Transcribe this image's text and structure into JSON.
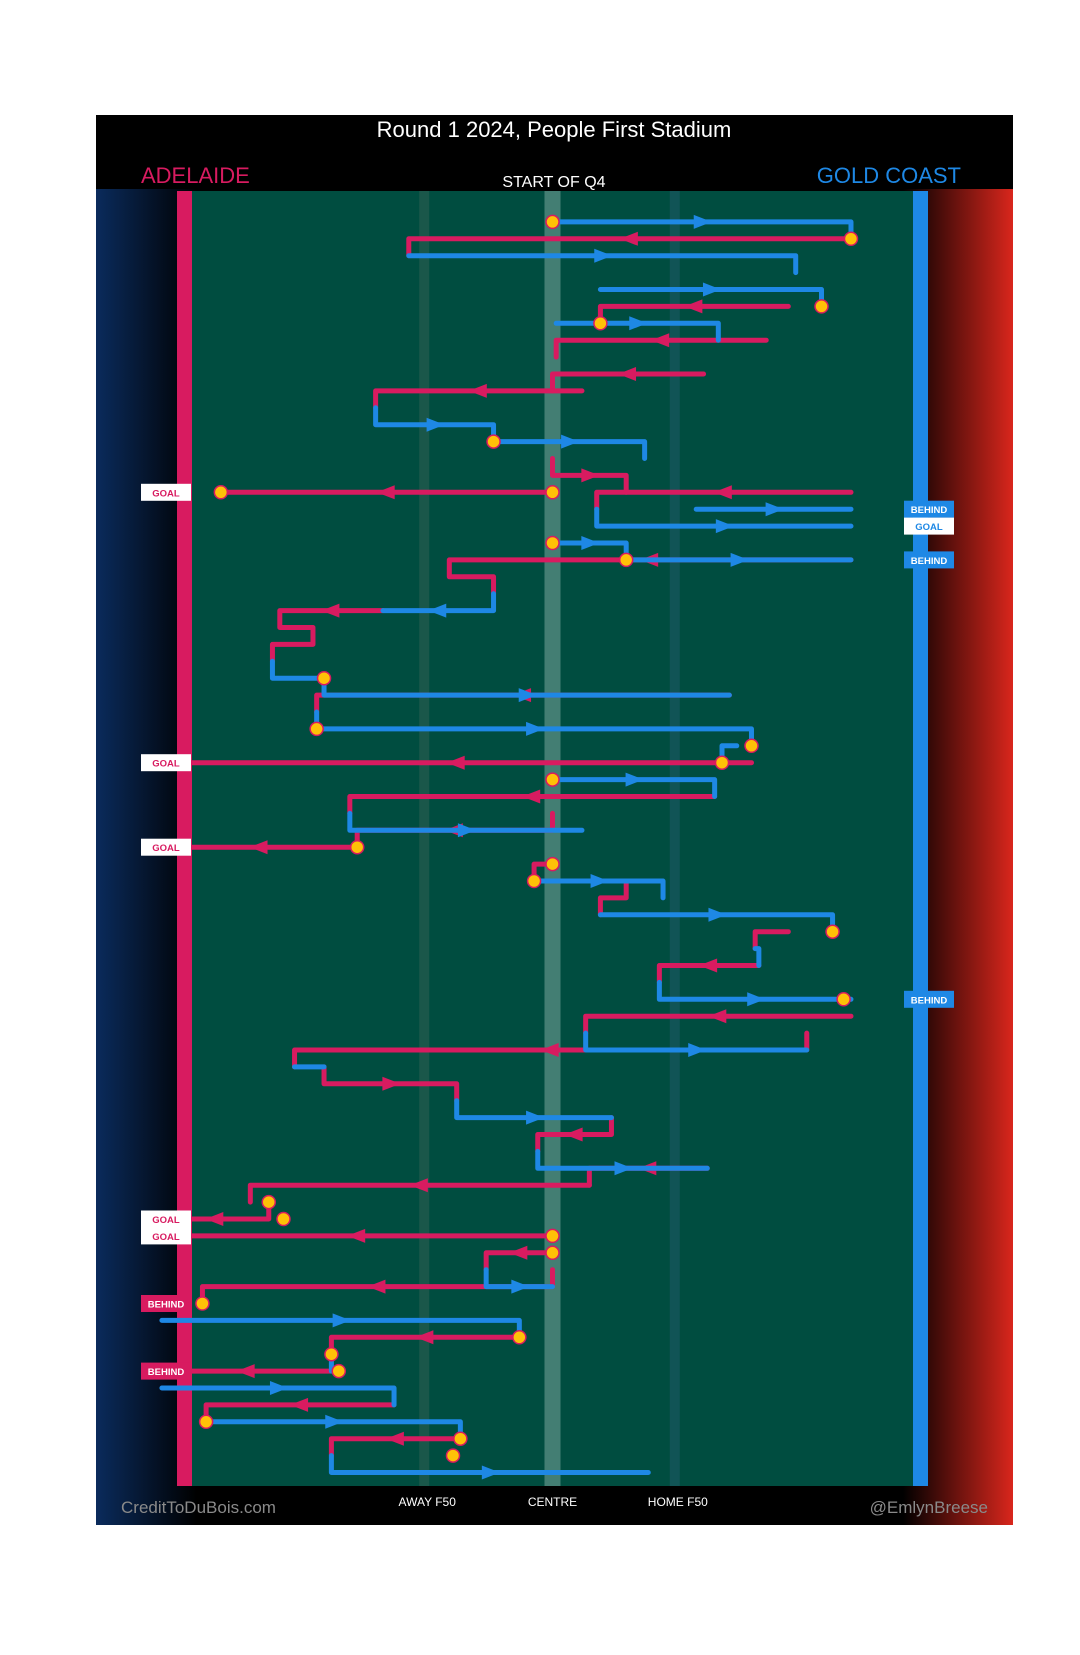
{
  "header": {
    "title": "Round 1 2024, People First Stadium",
    "home_team": "ADELAIDE",
    "away_team": "GOLD COAST",
    "quarter_label": "START OF Q4"
  },
  "footer": {
    "credit_left": "CreditToDuBois.com",
    "credit_right": "@EmlynBreese"
  },
  "colors": {
    "adelaide": "#d81b60",
    "gold_coast": "#1e88e5",
    "field": "#004d40",
    "marker": "#ffc107",
    "frame": "#000000"
  },
  "chart_data": {
    "type": "line",
    "x_axis": {
      "ticks": [
        {
          "label": "AWAY F50",
          "value": 0.33
        },
        {
          "label": "CENTRE",
          "value": 0.5
        },
        {
          "label": "HOME F50",
          "value": 0.67
        }
      ],
      "range": [
        0,
        1
      ]
    },
    "y_axis": {
      "range": [
        0,
        76
      ],
      "direction": "down"
    },
    "series": [
      {
        "name": "ADELAIDE",
        "color": "#d81b60",
        "segments": [
          [
            [
              0.905,
              2
            ],
            [
              0.305,
              2
            ],
            [
              0.305,
              3
            ]
          ],
          [
            [
              0.82,
              6
            ],
            [
              0.565,
              6
            ],
            [
              0.565,
              7
            ]
          ],
          [
            [
              0.79,
              8
            ],
            [
              0.505,
              8
            ],
            [
              0.505,
              9
            ]
          ],
          [
            [
              0.705,
              10
            ],
            [
              0.5,
              10
            ],
            [
              0.5,
              11
            ]
          ],
          [
            [
              0.54,
              11
            ],
            [
              0.26,
              11
            ],
            [
              0.26,
              12
            ]
          ],
          [
            [
              0.5,
              15
            ],
            [
              0.5,
              16
            ],
            [
              0.6,
              16
            ],
            [
              0.6,
              17
            ]
          ],
          [
            [
              0.905,
              17
            ],
            [
              0.56,
              17
            ],
            [
              0.56,
              18
            ]
          ],
          [
            [
              0.5,
              17
            ],
            [
              0.05,
              17
            ]
          ],
          [
            [
              0.905,
              21
            ],
            [
              0.36,
              21
            ],
            [
              0.36,
              22
            ],
            [
              0.42,
              22
            ],
            [
              0.42,
              23
            ]
          ],
          [
            [
              0.27,
              24
            ],
            [
              0.13,
              24
            ],
            [
              0.13,
              25
            ],
            [
              0.175,
              25
            ],
            [
              0.175,
              26
            ],
            [
              0.12,
              26
            ],
            [
              0.12,
              27
            ]
          ],
          [
            [
              0.74,
              29
            ],
            [
              0.18,
              29
            ],
            [
              0.18,
              30
            ]
          ],
          [
            [
              0.77,
              33
            ],
            [
              -0.03,
              33
            ]
          ],
          [
            [
              0.72,
              35
            ],
            [
              0.225,
              35
            ],
            [
              0.225,
              36
            ]
          ],
          [
            [
              0.5,
              36
            ],
            [
              0.5,
              37
            ],
            [
              0.235,
              37
            ],
            [
              0.235,
              38
            ]
          ],
          [
            [
              0.235,
              38
            ],
            [
              -0.03,
              38
            ]
          ],
          [
            [
              0.5,
              39
            ],
            [
              0.475,
              39
            ],
            [
              0.475,
              40
            ]
          ],
          [
            [
              0.6,
              40
            ],
            [
              0.6,
              41
            ],
            [
              0.565,
              41
            ],
            [
              0.565,
              42
            ]
          ],
          [
            [
              0.82,
              43
            ],
            [
              0.775,
              43
            ],
            [
              0.775,
              44
            ]
          ],
          [
            [
              0.78,
              45
            ],
            [
              0.645,
              45
            ],
            [
              0.645,
              46
            ]
          ],
          [
            [
              0.905,
              48
            ],
            [
              0.545,
              48
            ],
            [
              0.545,
              49
            ]
          ],
          [
            [
              0.845,
              49
            ],
            [
              0.845,
              50
            ],
            [
              0.15,
              50
            ],
            [
              0.15,
              51
            ]
          ],
          [
            [
              0.19,
              51
            ],
            [
              0.19,
              52
            ],
            [
              0.37,
              52
            ],
            [
              0.37,
              53
            ]
          ],
          [
            [
              0.58,
              54
            ],
            [
              0.58,
              55
            ],
            [
              0.48,
              55
            ],
            [
              0.48,
              56
            ]
          ],
          [
            [
              0.71,
              57
            ],
            [
              0.55,
              57
            ],
            [
              0.55,
              58
            ]
          ],
          [
            [
              0.55,
              58
            ],
            [
              0.09,
              58
            ],
            [
              0.09,
              59
            ]
          ],
          [
            [
              0.115,
              59
            ],
            [
              0.115,
              60
            ],
            [
              -0.03,
              60
            ]
          ],
          [
            [
              0.5,
              61
            ],
            [
              -0.03,
              61
            ]
          ],
          [
            [
              0.5,
              62
            ],
            [
              0.41,
              62
            ],
            [
              0.41,
              63
            ]
          ],
          [
            [
              0.5,
              63
            ],
            [
              0.5,
              64
            ],
            [
              0.025,
              64
            ],
            [
              0.025,
              65
            ]
          ],
          [
            [
              0.455,
              67
            ],
            [
              0.2,
              67
            ],
            [
              0.2,
              68
            ]
          ],
          [
            [
              0.2,
              69
            ],
            [
              -0.03,
              69
            ]
          ],
          [
            [
              0.285,
              71
            ],
            [
              0.03,
              71
            ],
            [
              0.03,
              72
            ]
          ],
          [
            [
              0.375,
              73
            ],
            [
              0.2,
              73
            ],
            [
              0.2,
              74
            ]
          ]
        ]
      },
      {
        "name": "GOLD COAST",
        "color": "#1e88e5",
        "segments": [
          [
            [
              0.5,
              1
            ],
            [
              0.905,
              1
            ],
            [
              0.905,
              2
            ]
          ],
          [
            [
              0.305,
              3
            ],
            [
              0.83,
              3
            ],
            [
              0.83,
              4
            ]
          ],
          [
            [
              0.565,
              5
            ],
            [
              0.865,
              5
            ],
            [
              0.865,
              6
            ]
          ],
          [
            [
              0.505,
              7
            ],
            [
              0.725,
              7
            ],
            [
              0.725,
              8
            ]
          ],
          [
            [
              0.26,
              12
            ],
            [
              0.26,
              13
            ],
            [
              0.42,
              13
            ],
            [
              0.42,
              14
            ]
          ],
          [
            [
              0.42,
              14
            ],
            [
              0.625,
              14
            ],
            [
              0.625,
              15
            ]
          ],
          [
            [
              0.695,
              18
            ],
            [
              0.905,
              18
            ]
          ],
          [
            [
              0.56,
              18
            ],
            [
              0.56,
              19
            ],
            [
              0.905,
              19
            ]
          ],
          [
            [
              0.5,
              20
            ],
            [
              0.6,
              20
            ],
            [
              0.6,
              21
            ]
          ],
          [
            [
              0.6,
              21
            ],
            [
              0.905,
              21
            ]
          ],
          [
            [
              0.42,
              23
            ],
            [
              0.42,
              24
            ],
            [
              0.27,
              24
            ]
          ],
          [
            [
              0.12,
              27
            ],
            [
              0.12,
              28
            ],
            [
              0.19,
              28
            ],
            [
              0.19,
              29
            ],
            [
              0.74,
              29
            ]
          ],
          [
            [
              0.18,
              30
            ],
            [
              0.18,
              31
            ],
            [
              0.77,
              31
            ],
            [
              0.77,
              32
            ]
          ],
          [
            [
              0.75,
              32
            ],
            [
              0.73,
              32
            ],
            [
              0.73,
              33
            ]
          ],
          [
            [
              0.5,
              34
            ],
            [
              0.72,
              34
            ],
            [
              0.72,
              35
            ]
          ],
          [
            [
              0.225,
              36
            ],
            [
              0.225,
              37
            ],
            [
              0.54,
              37
            ]
          ],
          [
            [
              0.475,
              40
            ],
            [
              0.65,
              40
            ],
            [
              0.65,
              41
            ]
          ],
          [
            [
              0.565,
              42
            ],
            [
              0.88,
              42
            ],
            [
              0.88,
              43
            ]
          ],
          [
            [
              0.775,
              44
            ],
            [
              0.78,
              44
            ],
            [
              0.78,
              45
            ]
          ],
          [
            [
              0.645,
              46
            ],
            [
              0.645,
              47
            ],
            [
              0.905,
              47
            ]
          ],
          [
            [
              0.545,
              49
            ],
            [
              0.545,
              50
            ],
            [
              0.845,
              50
            ]
          ],
          [
            [
              0.15,
              51
            ],
            [
              0.19,
              51
            ]
          ],
          [
            [
              0.37,
              53
            ],
            [
              0.37,
              54
            ],
            [
              0.58,
              54
            ]
          ],
          [
            [
              0.48,
              56
            ],
            [
              0.48,
              57
            ],
            [
              0.71,
              57
            ]
          ],
          [
            [
              0.41,
              63
            ],
            [
              0.41,
              64
            ],
            [
              0.5,
              64
            ]
          ],
          [
            [
              -0.03,
              66
            ],
            [
              0.455,
              66
            ],
            [
              0.455,
              67
            ]
          ],
          [
            [
              0.2,
              68
            ],
            [
              0.2,
              69
            ]
          ],
          [
            [
              -0.03,
              70
            ],
            [
              0.285,
              70
            ],
            [
              0.285,
              71
            ]
          ],
          [
            [
              0.03,
              72
            ],
            [
              0.375,
              72
            ],
            [
              0.375,
              73
            ]
          ],
          [
            [
              0.2,
              74
            ],
            [
              0.2,
              75
            ],
            [
              0.63,
              75
            ]
          ]
        ]
      }
    ],
    "stoppages": [
      [
        0.5,
        1
      ],
      [
        0.905,
        2
      ],
      [
        0.865,
        6
      ],
      [
        0.565,
        7
      ],
      [
        0.42,
        14
      ],
      [
        0.5,
        17
      ],
      [
        0.05,
        17
      ],
      [
        0.5,
        20
      ],
      [
        0.6,
        21
      ],
      [
        0.19,
        28
      ],
      [
        0.18,
        31
      ],
      [
        0.77,
        32
      ],
      [
        0.73,
        33
      ],
      [
        0.5,
        34
      ],
      [
        0.235,
        38
      ],
      [
        0.5,
        39
      ],
      [
        0.475,
        40
      ],
      [
        0.88,
        43
      ],
      [
        0.895,
        47
      ],
      [
        0.115,
        59
      ],
      [
        0.135,
        60
      ],
      [
        0.5,
        61
      ],
      [
        0.5,
        62
      ],
      [
        0.025,
        65
      ],
      [
        0.455,
        67
      ],
      [
        0.2,
        68
      ],
      [
        0.21,
        69
      ],
      [
        0.375,
        73
      ],
      [
        0.365,
        74
      ],
      [
        0.03,
        72
      ]
    ],
    "outcomes": [
      {
        "team": "GOLD COAST",
        "label": "BEHIND",
        "y": 18
      },
      {
        "team": "GOLD COAST",
        "label": "GOAL",
        "y": 19
      },
      {
        "team": "ADELAIDE",
        "label": "GOAL",
        "y": 17
      },
      {
        "team": "GOLD COAST",
        "label": "BEHIND",
        "y": 21
      },
      {
        "team": "ADELAIDE",
        "label": "GOAL",
        "y": 33
      },
      {
        "team": "ADELAIDE",
        "label": "GOAL",
        "y": 38
      },
      {
        "team": "GOLD COAST",
        "label": "BEHIND",
        "y": 47
      },
      {
        "team": "ADELAIDE",
        "label": "GOAL",
        "y": 60
      },
      {
        "team": "ADELAIDE",
        "label": "GOAL",
        "y": 61
      },
      {
        "team": "ADELAIDE",
        "label": "BEHIND",
        "y": 65
      },
      {
        "team": "ADELAIDE",
        "label": "BEHIND",
        "y": 69
      }
    ]
  }
}
